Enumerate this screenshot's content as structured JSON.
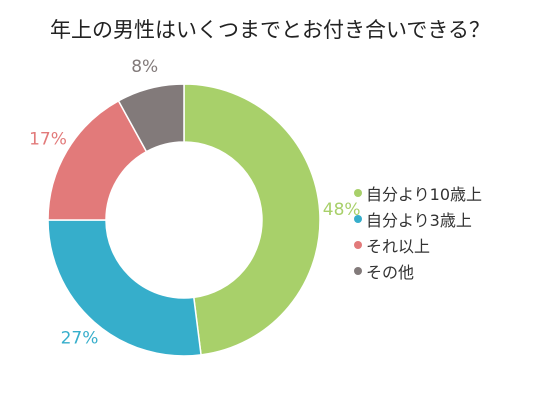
{
  "chart_data": {
    "type": "pie",
    "style": "donut",
    "title": "年上の男性はいくつまでとお付き合いできる？",
    "categories": [
      "自分より10歳上",
      "自分より3歳上",
      "それ以上",
      "その他"
    ],
    "values": [
      48,
      27,
      17,
      8
    ],
    "value_labels": [
      "48%",
      "27%",
      "17%",
      "8%"
    ],
    "colors": [
      "#a8d06a",
      "#36aecb",
      "#e27a7a",
      "#827a7a"
    ],
    "legend_position": "right"
  }
}
